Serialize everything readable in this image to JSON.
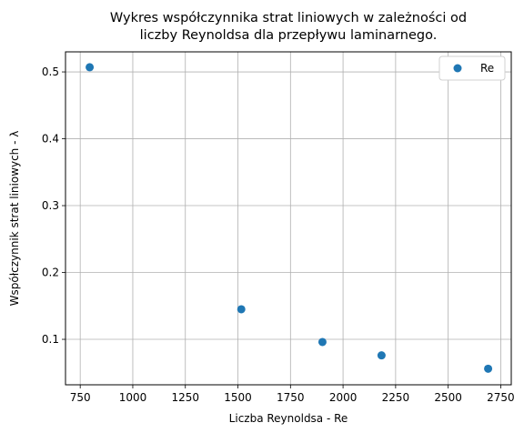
{
  "chart_data": {
    "type": "scatter",
    "title_lines": [
      "Wykres współczynnika strat liniowych w zależności od",
      "liczby Reynoldsa dla przepływu laminarnego."
    ],
    "xlabel": "Liczba Reynoldsa - Re",
    "ylabel": "Współczynnik strat liniowych - λ",
    "xlim": [
      680,
      2800
    ],
    "ylim": [
      0.032,
      0.53
    ],
    "xticks": [
      750,
      1000,
      1250,
      1500,
      1750,
      2000,
      2250,
      2500,
      2750
    ],
    "yticks": [
      0.1,
      0.2,
      0.3,
      0.4,
      0.5
    ],
    "grid": true,
    "legend_position": "top-right",
    "series": [
      {
        "name": "Re",
        "color": "#1f77b4",
        "x": [
          795,
          1516,
          1902,
          2183,
          2690
        ],
        "y": [
          0.507,
          0.145,
          0.096,
          0.076,
          0.056
        ]
      }
    ]
  }
}
